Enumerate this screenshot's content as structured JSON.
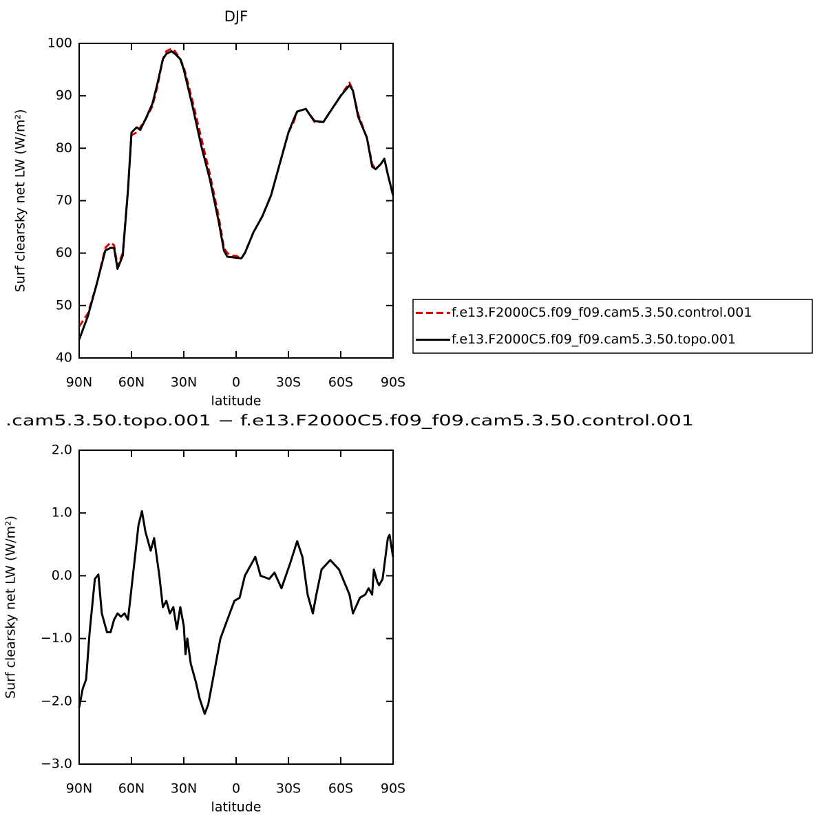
{
  "chart_data": [
    {
      "type": "line",
      "title": "DJF",
      "xlabel": "latitude",
      "ylabel": "Surf clearsky net LW (W/m²)",
      "xlim": [
        90,
        -90
      ],
      "xticks": [
        {
          "value": 90,
          "label": "90N"
        },
        {
          "value": 60,
          "label": "60N"
        },
        {
          "value": 30,
          "label": "30N"
        },
        0,
        {
          "value": -30,
          "label": "30S"
        },
        {
          "value": -60,
          "label": "60S"
        },
        {
          "value": -90,
          "label": "90S"
        }
      ],
      "ylim": [
        40,
        100
      ],
      "yticks": [
        40,
        50,
        60,
        70,
        80,
        90,
        100
      ],
      "x": [
        90,
        85,
        80,
        75,
        72,
        70,
        68,
        65,
        62,
        60,
        57,
        55,
        52,
        48,
        45,
        42,
        40,
        37,
        35,
        32,
        30,
        25,
        20,
        15,
        10,
        7,
        5,
        2,
        0,
        -3,
        -5,
        -10,
        -15,
        -20,
        -25,
        -30,
        -33,
        -35,
        -40,
        -42,
        -45,
        -50,
        -55,
        -60,
        -65,
        -67,
        -70,
        -75,
        -78,
        -80,
        -83,
        -85,
        -87,
        -90
      ],
      "series": [
        {
          "name": "f.e13.F2000C5.f09_f09.cam5.3.50.control.001",
          "color": "#e00000",
          "style": "dashed",
          "values": [
            46,
            48.5,
            54,
            61,
            62,
            61.5,
            57.5,
            60,
            72,
            82.5,
            83,
            84,
            85.5,
            88,
            92,
            97,
            98.5,
            99,
            98.5,
            97,
            95.5,
            89,
            82,
            75,
            67,
            61,
            60,
            59.5,
            59.5,
            59,
            60,
            64,
            67,
            71,
            77,
            83,
            85,
            87,
            87.5,
            86.5,
            85,
            85,
            87.5,
            90,
            92.5,
            91,
            86.5,
            82,
            77,
            76,
            77,
            78,
            75,
            71
          ]
        },
        {
          "name": "f.e13.F2000C5.f09_f09.cam5.3.50.topo.001",
          "color": "#000000",
          "style": "solid",
          "values": [
            43.5,
            48,
            54,
            60.5,
            61,
            61,
            57,
            59.5,
            72,
            83,
            84,
            83.5,
            85.5,
            88.5,
            92.5,
            97,
            98,
            98.5,
            98,
            97,
            95,
            88,
            80.5,
            74,
            66,
            60.5,
            59.3,
            59.2,
            59.1,
            59,
            60,
            64,
            67,
            71,
            77,
            83,
            85.5,
            87,
            87.5,
            86.5,
            85.2,
            85,
            87.5,
            90,
            92,
            91,
            86,
            82,
            76.5,
            76,
            77,
            78,
            75,
            71
          ]
        }
      ]
    },
    {
      "type": "line",
      "title": ".cam5.3.50.topo.001 − f.e13.F2000C5.f09_f09.cam5.3.50.control.001",
      "xlabel": "latitude",
      "ylabel": "Surf clearsky net LW (W/m²)",
      "xlim": [
        90,
        -90
      ],
      "xticks": [
        {
          "value": 90,
          "label": "90N"
        },
        {
          "value": 60,
          "label": "60N"
        },
        {
          "value": 30,
          "label": "30N"
        },
        0,
        {
          "value": -30,
          "label": "30S"
        },
        {
          "value": -60,
          "label": "60S"
        },
        {
          "value": -90,
          "label": "90S"
        }
      ],
      "ylim": [
        -3,
        2
      ],
      "yticks": [
        {
          "value": -3,
          "label": "−3.0"
        },
        {
          "value": -2,
          "label": "−2.0"
        },
        {
          "value": -1,
          "label": "−1.0"
        },
        {
          "value": 0,
          "label": "0.0"
        },
        {
          "value": 1,
          "label": "1.0"
        },
        {
          "value": 2,
          "label": "2.0"
        }
      ],
      "x": [
        90,
        88,
        86,
        84,
        81,
        79,
        77,
        74,
        72,
        70,
        68,
        66,
        64,
        62,
        58,
        56,
        54,
        52,
        49,
        47,
        44,
        42,
        40,
        38,
        36,
        34,
        32,
        30,
        29,
        28,
        26,
        23,
        21,
        18,
        16,
        13,
        9,
        5,
        1,
        -2,
        -5,
        -11,
        -14,
        -19,
        -22,
        -26,
        -31,
        -35,
        -38,
        -41,
        -44,
        -46,
        -49,
        -54,
        -59,
        -62,
        -65,
        -67,
        -71,
        -74,
        -76,
        -78,
        -79,
        -81,
        -82,
        -84,
        -87,
        -88,
        -90
      ],
      "series": [
        {
          "color": "#000000",
          "style": "solid",
          "values": [
            -2.1,
            -1.8,
            -1.65,
            -0.9,
            -0.05,
            0.02,
            -0.6,
            -0.9,
            -0.9,
            -0.7,
            -0.6,
            -0.65,
            -0.6,
            -0.7,
            0.3,
            0.8,
            1.03,
            0.7,
            0.4,
            0.6,
            0,
            -0.5,
            -0.4,
            -0.6,
            -0.5,
            -0.85,
            -0.5,
            -0.8,
            -1.25,
            -1.0,
            -1.4,
            -1.7,
            -1.95,
            -2.2,
            -2.05,
            -1.6,
            -1.0,
            -0.7,
            -0.4,
            -0.35,
            0,
            0.3,
            0,
            -0.05,
            0.05,
            -0.2,
            0.2,
            0.55,
            0.3,
            -0.3,
            -0.6,
            -0.3,
            0.1,
            0.25,
            0.1,
            -0.1,
            -0.3,
            -0.6,
            -0.35,
            -0.3,
            -0.2,
            -0.3,
            0.1,
            -0.1,
            -0.15,
            -0.05,
            0.6,
            0.65,
            0.3
          ]
        }
      ]
    }
  ]
}
